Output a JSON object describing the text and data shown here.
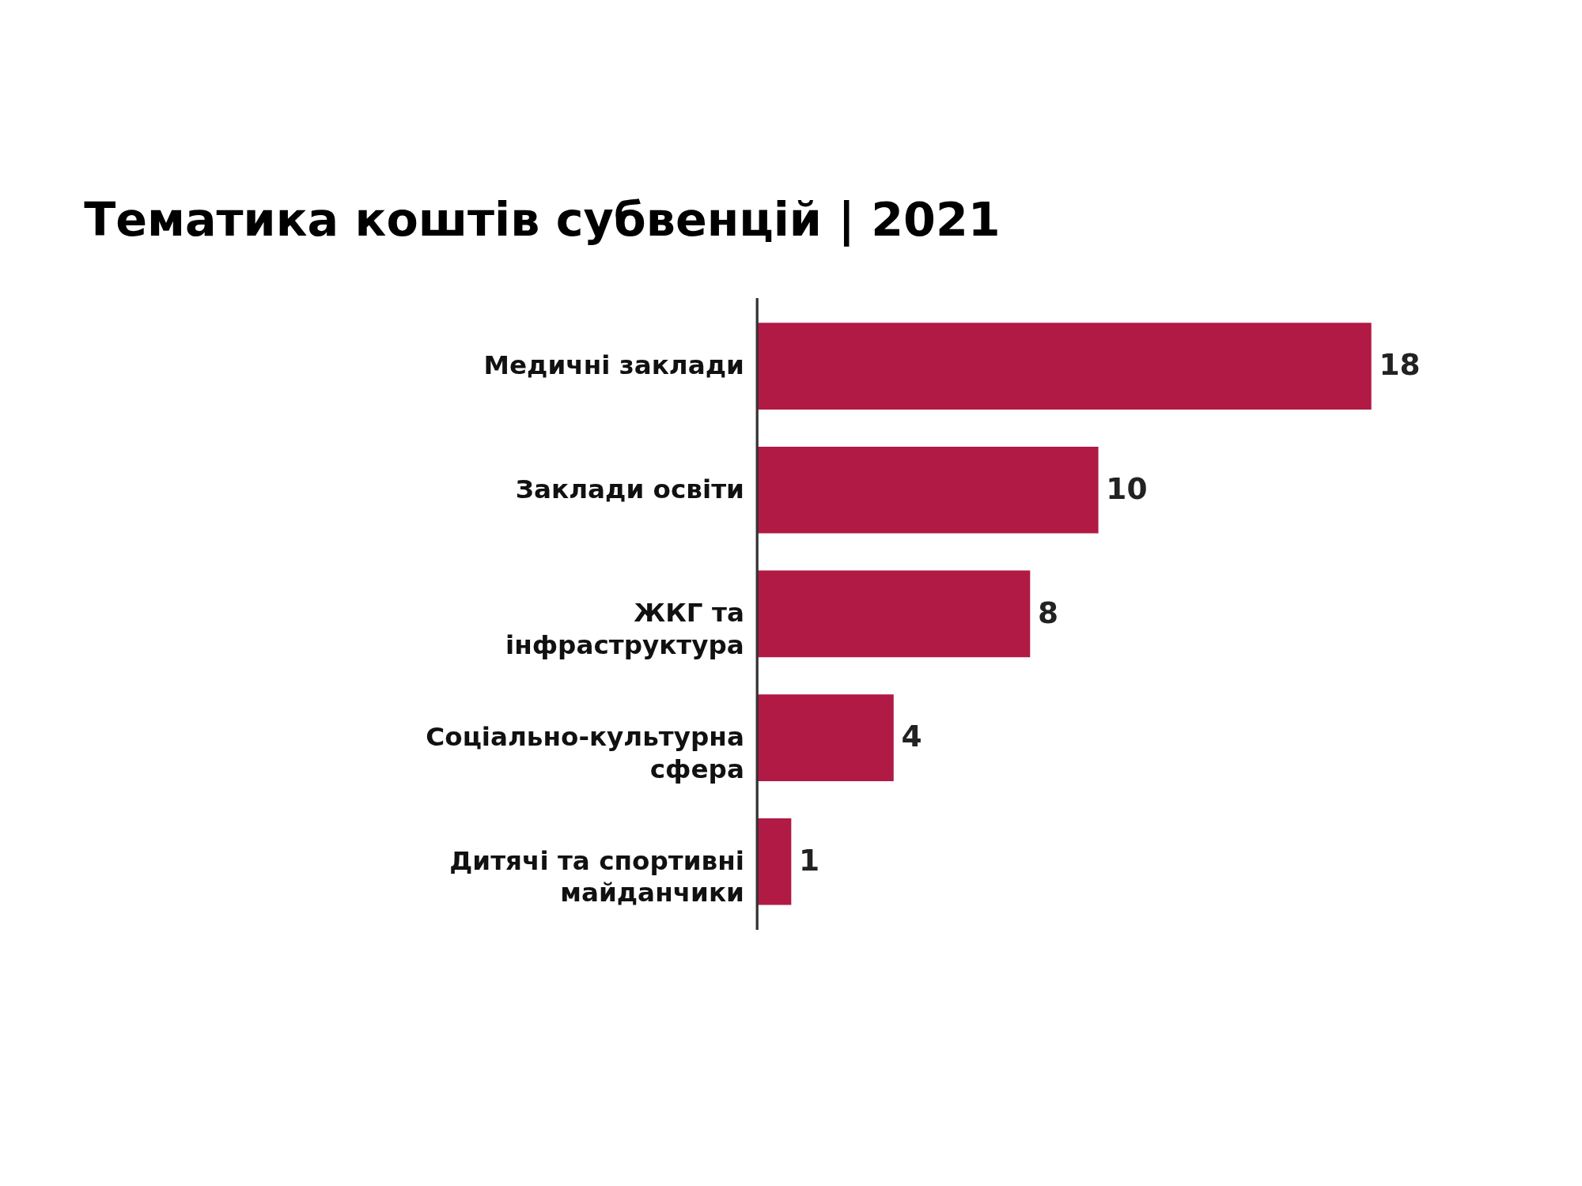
{
  "chart_data": {
    "type": "bar",
    "orientation": "horizontal",
    "title": "Тематика коштів субвенцій | 2021",
    "categories": [
      "Медичні заклади",
      "Заклади освіти",
      "ЖКГ та інфраструктура",
      "Соціально-культурна сфера",
      "Дитячі та спортивні майданчики"
    ],
    "values": [
      18,
      10,
      8,
      4,
      1
    ],
    "color": "#b01a44",
    "data_labels": true
  }
}
